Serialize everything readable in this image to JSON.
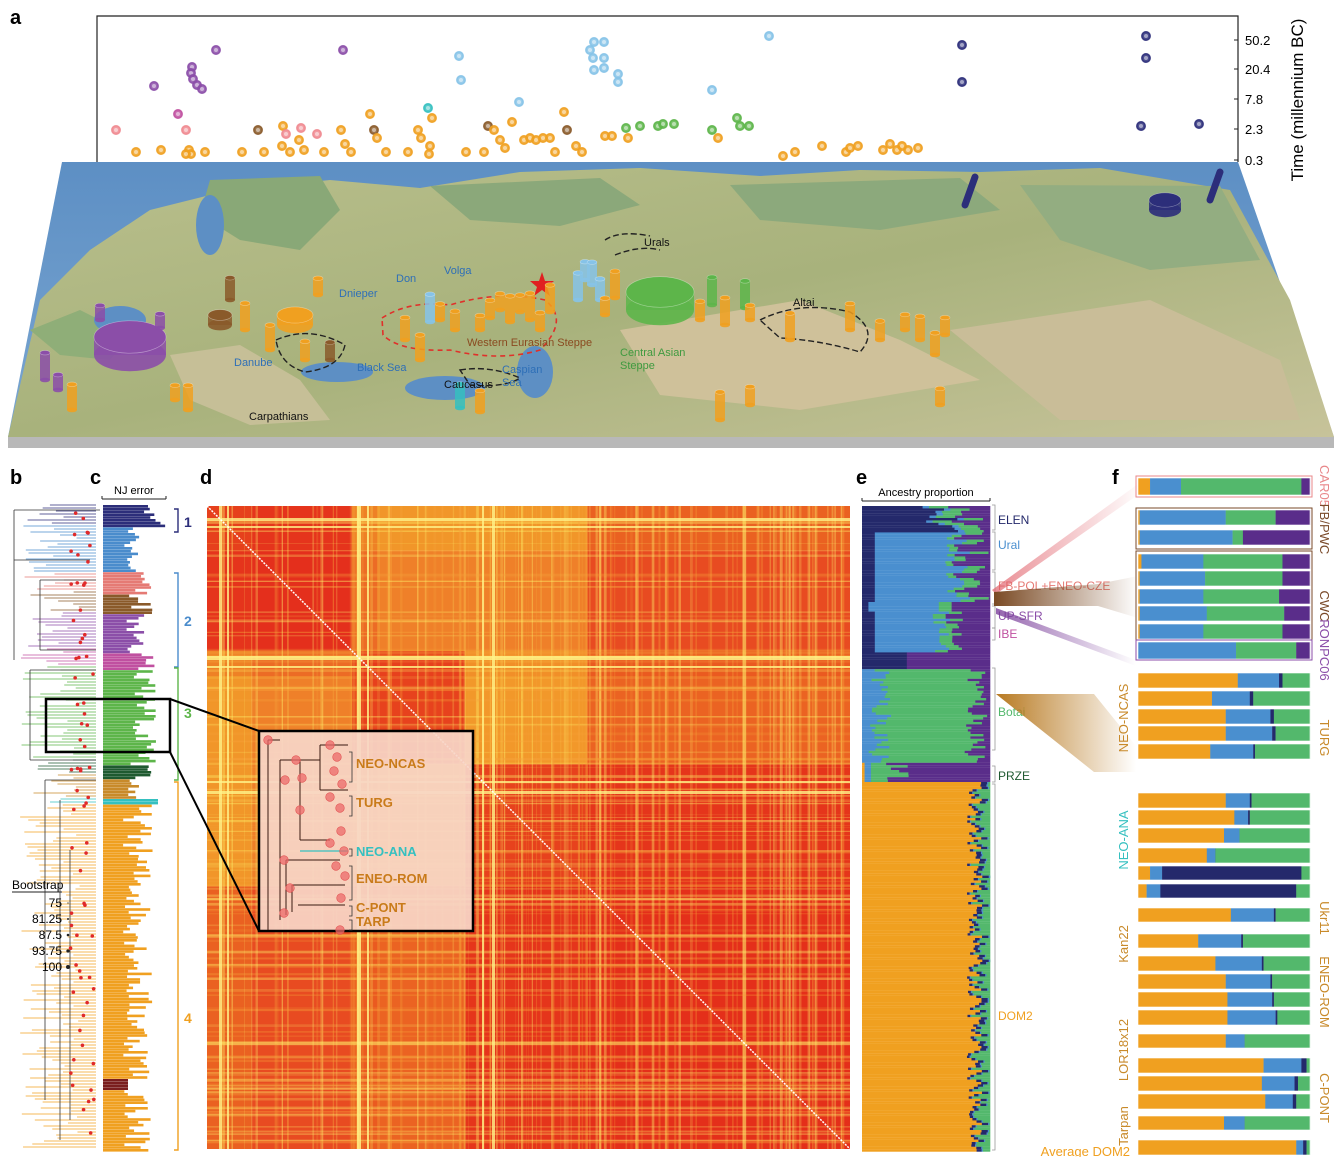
{
  "panel_labels": {
    "a": "a",
    "b": "b",
    "c": "c",
    "d": "d",
    "e": "e",
    "f": "f"
  },
  "time_axis": {
    "label": "Time (millennium BC)",
    "ticks": [
      "50.2",
      "20.4",
      "7.8",
      "2.3",
      "0.3"
    ]
  },
  "map_labels": {
    "urals": "Urals",
    "altai": "Altai",
    "don": "Don",
    "volga": "Volga",
    "dnieper": "Dnieper",
    "danube": "Danube",
    "black_sea": "Black Sea",
    "caspian_sea": "Caspian\nSea",
    "caucasus": "Caucasus",
    "carpathians": "Carpathians",
    "western_steppe": "Western Eurasian Steppe",
    "central_steppe": "Central Asian\nSteppe"
  },
  "panel_c": {
    "title": "NJ error",
    "cluster_numbers": [
      "1",
      "2",
      "3",
      "4"
    ]
  },
  "bootstrap": {
    "title": "Bootstrap",
    "values": [
      "75",
      "81.25",
      "87.5",
      "93.75",
      "100"
    ]
  },
  "inset_tree": {
    "labels": [
      "NEO-NCAS",
      "TURG",
      "NEO-ANA",
      "ENEO-ROM",
      "C-PONT",
      "TARP"
    ]
  },
  "panel_e": {
    "title": "Ancestry proportion",
    "groups": [
      "ELEN",
      "Ural",
      "FB-POL+ENEO-CZE",
      "UP-SFR",
      "IBE",
      "Botai",
      "PRZE",
      "DOM2"
    ]
  },
  "panel_f": {
    "right_labels": [
      "CAR05",
      "FB/PWC",
      "CWC",
      "RONPC06",
      "TURG",
      "Ukr11",
      "ENEO-ROM",
      "C-PONT"
    ],
    "left_labels": [
      "NEO-NCAS",
      "NEO-ANA",
      "Kan22",
      "LOR18x12",
      "Tarpan"
    ],
    "bottom_label": "Average DOM2",
    "bars": [
      [
        0.07,
        0.18,
        0.7,
        0.05
      ],
      [
        0.01,
        0.5,
        0.29,
        0.2
      ],
      [
        0.01,
        0.54,
        0.06,
        0.39
      ],
      [
        0.02,
        0.36,
        0.46,
        0.16
      ],
      [
        0.01,
        0.38,
        0.45,
        0.16
      ],
      [
        0.01,
        0.37,
        0.44,
        0.18
      ],
      [
        0.01,
        0.39,
        0.45,
        0.15
      ],
      [
        0.01,
        0.37,
        0.46,
        0.16
      ],
      [
        0.0,
        0.57,
        0.35,
        0.08
      ],
      [
        0.58,
        0.24,
        0.02,
        0.16
      ],
      [
        0.43,
        0.22,
        0.02,
        0.33
      ],
      [
        0.51,
        0.26,
        0.02,
        0.21
      ],
      [
        0.51,
        0.27,
        0.02,
        0.2
      ],
      [
        0.42,
        0.25,
        0.01,
        0.32
      ],
      [
        0.51,
        0.14,
        0.01,
        0.34
      ],
      [
        0.56,
        0.08,
        0.01,
        0.35
      ],
      [
        0.5,
        0.09,
        0.0,
        0.41
      ],
      [
        0.4,
        0.05,
        0.0,
        0.55
      ],
      [
        0.07,
        0.07,
        0.81,
        0.05
      ],
      [
        0.05,
        0.08,
        0.79,
        0.08
      ],
      [
        0.54,
        0.25,
        0.01,
        0.2
      ],
      [
        0.35,
        0.25,
        0.01,
        0.39
      ],
      [
        0.45,
        0.27,
        0.01,
        0.27
      ],
      [
        0.51,
        0.26,
        0.01,
        0.22
      ],
      [
        0.52,
        0.26,
        0.01,
        0.21
      ],
      [
        0.52,
        0.28,
        0.01,
        0.19
      ],
      [
        0.51,
        0.11,
        0.0,
        0.38
      ],
      [
        0.73,
        0.22,
        0.03,
        0.02
      ],
      [
        0.72,
        0.19,
        0.02,
        0.07
      ],
      [
        0.74,
        0.16,
        0.02,
        0.08
      ],
      [
        0.5,
        0.12,
        0.0,
        0.38
      ],
      [
        0.92,
        0.04,
        0.02,
        0.02
      ]
    ]
  }
}
